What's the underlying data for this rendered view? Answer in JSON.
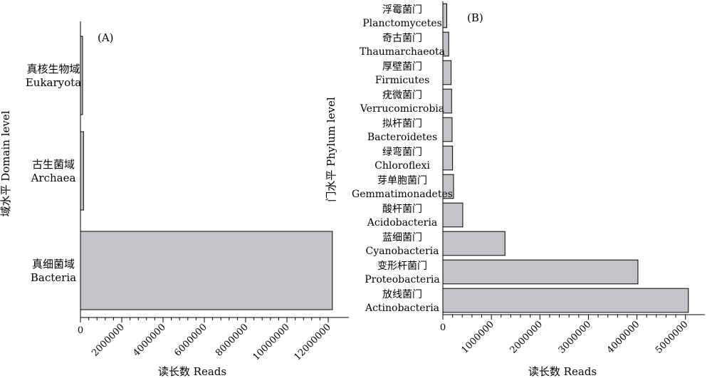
{
  "chart_data": [
    {
      "type": "bar",
      "orientation": "horizontal",
      "panel_label": "(A)",
      "xlabel": "读长数 Reads",
      "ylabel": "域水平 Domain level",
      "xlim": [
        0,
        13000000
      ],
      "x_ticks": [
        0,
        2000000,
        4000000,
        6000000,
        8000000,
        10000000,
        12000000
      ],
      "x_tick_labels": [
        "0",
        "2000000",
        "4000000",
        "6000000",
        "8000000",
        "10000000",
        "12000000"
      ],
      "categories": [
        {
          "zh": "真细菌域",
          "en": "Bacteria"
        },
        {
          "zh": "古生菌域",
          "en": "Archaea"
        },
        {
          "zh": "真核生物域",
          "en": "Eukaryota"
        }
      ],
      "values": [
        12200000,
        150000,
        80000
      ],
      "grid": false,
      "bar_color": "#c6c3c8"
    },
    {
      "type": "bar",
      "orientation": "horizontal",
      "panel_label": "(B)",
      "xlabel": "读长数 Reads",
      "ylabel": "门水平 Phylum level",
      "xlim": [
        0,
        5400000
      ],
      "x_ticks": [
        0,
        1000000,
        2000000,
        3000000,
        4000000,
        5000000
      ],
      "x_tick_labels": [
        "0",
        "1000000",
        "2000000",
        "3000000",
        "4000000",
        "5000000"
      ],
      "categories": [
        {
          "zh": "放线菌门",
          "en": "Actinobacteria"
        },
        {
          "zh": "变形杆菌门",
          "en": "Proteobacteria"
        },
        {
          "zh": "蓝细菌门",
          "en": "Cyanobacteria"
        },
        {
          "zh": "酸杆菌门",
          "en": "Acidobacteria"
        },
        {
          "zh": "芽单胞菌门",
          "en": "Gemmatimonadetes"
        },
        {
          "zh": "绿弯菌门",
          "en": "Chloroflexi"
        },
        {
          "zh": "拟杆菌门",
          "en": "Bacteroidetes"
        },
        {
          "zh": "疣微菌门",
          "en": "Verrucomicrobia"
        },
        {
          "zh": "厚壁菌门",
          "en": "Firmicutes"
        },
        {
          "zh": "奇古菌门",
          "en": "Thaumarchaeota"
        },
        {
          "zh": "浮霉菌门",
          "en": "Planctomycetes"
        }
      ],
      "values": [
        5060000,
        4020000,
        1280000,
        410000,
        220000,
        200000,
        190000,
        180000,
        170000,
        120000,
        80000
      ],
      "grid": false,
      "bar_color": "#c6c3c8"
    }
  ]
}
